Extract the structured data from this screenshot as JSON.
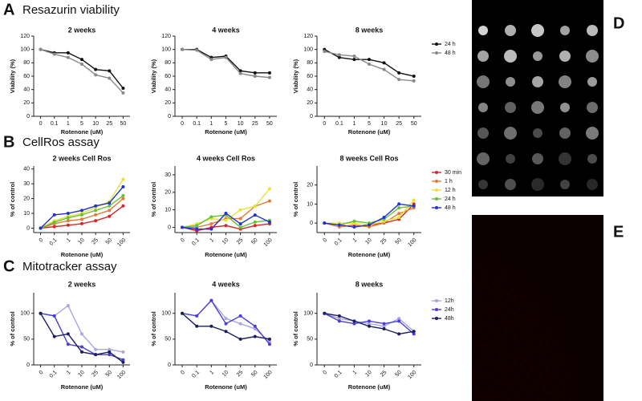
{
  "panels": [
    {
      "letter": "A",
      "title": "Resazurin viability"
    },
    {
      "letter": "B",
      "title": "CellRos assay"
    },
    {
      "letter": "C",
      "title": "Mitotracker assay"
    },
    {
      "letter": "D"
    },
    {
      "letter": "E"
    }
  ],
  "chart_data": [
    {
      "type": "line",
      "title": "2 weeks",
      "x_label": "Rotenone (uM)",
      "y_label": "Viability (%)",
      "categories": [
        "0",
        "0.1",
        "1",
        "5",
        "10",
        "25",
        "50"
      ],
      "ylim": [
        0,
        120
      ],
      "yticks": [
        0,
        20,
        40,
        60,
        80,
        100,
        120
      ],
      "legend": false,
      "series": [
        {
          "name": "24 h",
          "color": "#111111",
          "values": [
            100,
            95,
            95,
            85,
            70,
            68,
            42
          ]
        },
        {
          "name": "48 h",
          "color": "#888888",
          "values": [
            100,
            93,
            88,
            78,
            62,
            57,
            35
          ]
        }
      ]
    },
    {
      "type": "line",
      "title": "4 weeks",
      "x_label": "Rotenone (uM)",
      "y_label": "Viability (%)",
      "categories": [
        "0",
        "0.1",
        "1",
        "5",
        "10",
        "25",
        "50"
      ],
      "ylim": [
        0,
        120
      ],
      "yticks": [
        0,
        20,
        40,
        60,
        80,
        100,
        120
      ],
      "legend": false,
      "series": [
        {
          "name": "24 h",
          "color": "#111111",
          "values": [
            100,
            100,
            88,
            90,
            68,
            65,
            65
          ]
        },
        {
          "name": "48 h",
          "color": "#888888",
          "values": [
            100,
            99,
            85,
            88,
            64,
            60,
            58
          ]
        }
      ]
    },
    {
      "type": "line",
      "title": "8 weeks",
      "x_label": "Rotenone (uM)",
      "y_label": "Viability (%)",
      "categories": [
        "0",
        "0.1",
        "1",
        "5",
        "10",
        "25",
        "50"
      ],
      "ylim": [
        0,
        120
      ],
      "yticks": [
        0,
        20,
        40,
        60,
        80,
        100,
        120
      ],
      "legend": true,
      "series": [
        {
          "name": "24 h",
          "color": "#111111",
          "values": [
            100,
            88,
            85,
            85,
            80,
            65,
            60
          ]
        },
        {
          "name": "48 h",
          "color": "#888888",
          "values": [
            97,
            92,
            90,
            78,
            70,
            55,
            53
          ]
        }
      ]
    },
    {
      "type": "line",
      "title": "2 weeks Cell Ros",
      "x_label": "Rotenone (uM)",
      "y_label": "% of control",
      "categories": [
        "0",
        "0.1",
        "1",
        "10",
        "25",
        "50",
        "100"
      ],
      "ylim": [
        -3,
        42
      ],
      "yticks": [
        0,
        10,
        20,
        30,
        40
      ],
      "legend": false,
      "series": [
        {
          "name": "30 min",
          "color": "#d62728",
          "values": [
            0,
            1,
            2,
            3,
            5,
            8,
            15
          ]
        },
        {
          "name": "1 h",
          "color": "#e07b39",
          "values": [
            0,
            3,
            5,
            6,
            9,
            12,
            20
          ]
        },
        {
          "name": "12 h",
          "color": "#e8e23a",
          "values": [
            0,
            5,
            8,
            10,
            14,
            18,
            33
          ]
        },
        {
          "name": "24 h",
          "color": "#6abf3a",
          "values": [
            0,
            4,
            7,
            9,
            12,
            15,
            22
          ]
        },
        {
          "name": "48 h",
          "color": "#2233cc",
          "values": [
            0,
            9,
            10,
            12,
            15,
            17,
            28
          ]
        }
      ]
    },
    {
      "type": "line",
      "title": "4 weeks Cell Ros",
      "x_label": "Rotenone (uM)",
      "y_label": "% of control",
      "categories": [
        "0",
        "0.1",
        "1",
        "10",
        "25",
        "50",
        "100"
      ],
      "ylim": [
        -3,
        35
      ],
      "yticks": [
        0,
        10,
        20,
        30
      ],
      "legend": false,
      "series": [
        {
          "name": "30 min",
          "color": "#d62728",
          "values": [
            0,
            -2,
            0,
            1,
            -1,
            1,
            2
          ]
        },
        {
          "name": "1 h",
          "color": "#e07b39",
          "values": [
            0,
            0,
            2,
            5,
            5,
            12,
            15
          ]
        },
        {
          "name": "12 h",
          "color": "#e8e23a",
          "values": [
            0,
            2,
            5,
            4,
            10,
            12,
            22
          ]
        },
        {
          "name": "24 h",
          "color": "#6abf3a",
          "values": [
            0,
            1,
            6,
            7,
            0,
            3,
            4
          ]
        },
        {
          "name": "48 h",
          "color": "#2233cc",
          "values": [
            0,
            -1,
            -1,
            8,
            2,
            7,
            3
          ]
        }
      ]
    },
    {
      "type": "line",
      "title": "8 weeks Cell Ros",
      "x_label": "Rotenone (uM)",
      "y_label": "% of control",
      "categories": [
        "0",
        "0.1",
        "1",
        "10",
        "25",
        "50",
        "100"
      ],
      "ylim": [
        -5,
        30
      ],
      "yticks": [
        0,
        10,
        20
      ],
      "legend": true,
      "series": [
        {
          "name": "30 min",
          "color": "#d62728",
          "values": [
            0,
            -1,
            -2,
            -1,
            0,
            2,
            10
          ]
        },
        {
          "name": "1 h",
          "color": "#e07b39",
          "values": [
            0,
            -2,
            -1,
            -2,
            0,
            5,
            8
          ]
        },
        {
          "name": "12 h",
          "color": "#e8e23a",
          "values": [
            0,
            0,
            0,
            -1,
            1,
            3,
            12
          ]
        },
        {
          "name": "24 h",
          "color": "#6abf3a",
          "values": [
            0,
            -1,
            1,
            0,
            2,
            8,
            9
          ]
        },
        {
          "name": "48 h",
          "color": "#2233cc",
          "values": [
            0,
            -1,
            -2,
            -1,
            3,
            10,
            9
          ]
        }
      ]
    },
    {
      "type": "line",
      "title": "2 weeks",
      "x_label": "Rotenone (uM)",
      "y_label": "% of control",
      "categories": [
        "0",
        "0.1",
        "1",
        "10",
        "25",
        "50",
        "100"
      ],
      "ylim": [
        0,
        140
      ],
      "yticks": [
        0,
        50,
        100
      ],
      "legend": false,
      "series": [
        {
          "name": "12h",
          "color": "#a9a6e0",
          "values": [
            100,
            95,
            115,
            60,
            30,
            30,
            25
          ]
        },
        {
          "name": "24h",
          "color": "#4b3fd1",
          "values": [
            100,
            95,
            40,
            35,
            20,
            20,
            10
          ]
        },
        {
          "name": "48h",
          "color": "#1b1f5e",
          "values": [
            100,
            55,
            60,
            25,
            20,
            25,
            5
          ]
        }
      ]
    },
    {
      "type": "line",
      "title": "4 weeks",
      "x_label": "Rotenone (uM)",
      "y_label": "% of control",
      "categories": [
        "0",
        "0.1",
        "1",
        "10",
        "25",
        "50",
        "100"
      ],
      "ylim": [
        0,
        140
      ],
      "yticks": [
        0,
        50,
        100
      ],
      "legend": false,
      "series": [
        {
          "name": "12h",
          "color": "#a9a6e0",
          "values": [
            100,
            95,
            125,
            90,
            80,
            70,
            45
          ]
        },
        {
          "name": "24h",
          "color": "#4b3fd1",
          "values": [
            100,
            95,
            125,
            80,
            95,
            75,
            40
          ]
        },
        {
          "name": "48h",
          "color": "#1b1f5e",
          "values": [
            100,
            75,
            75,
            65,
            50,
            55,
            50
          ]
        }
      ]
    },
    {
      "type": "line",
      "title": "8 weeks",
      "x_label": "Rotenone (uM)",
      "y_label": "% of control",
      "categories": [
        "0",
        "0.1",
        "1",
        "10",
        "25",
        "50",
        "100"
      ],
      "ylim": [
        0,
        140
      ],
      "yticks": [
        0,
        50,
        100
      ],
      "legend": true,
      "series": [
        {
          "name": "12h",
          "color": "#a9a6e0",
          "values": [
            100,
            90,
            85,
            80,
            75,
            90,
            65
          ]
        },
        {
          "name": "24h",
          "color": "#4b3fd1",
          "values": [
            100,
            85,
            80,
            85,
            80,
            85,
            60
          ]
        },
        {
          "name": "48h",
          "color": "#1b1f5e",
          "values": [
            100,
            95,
            85,
            75,
            70,
            60,
            65
          ]
        }
      ]
    }
  ]
}
